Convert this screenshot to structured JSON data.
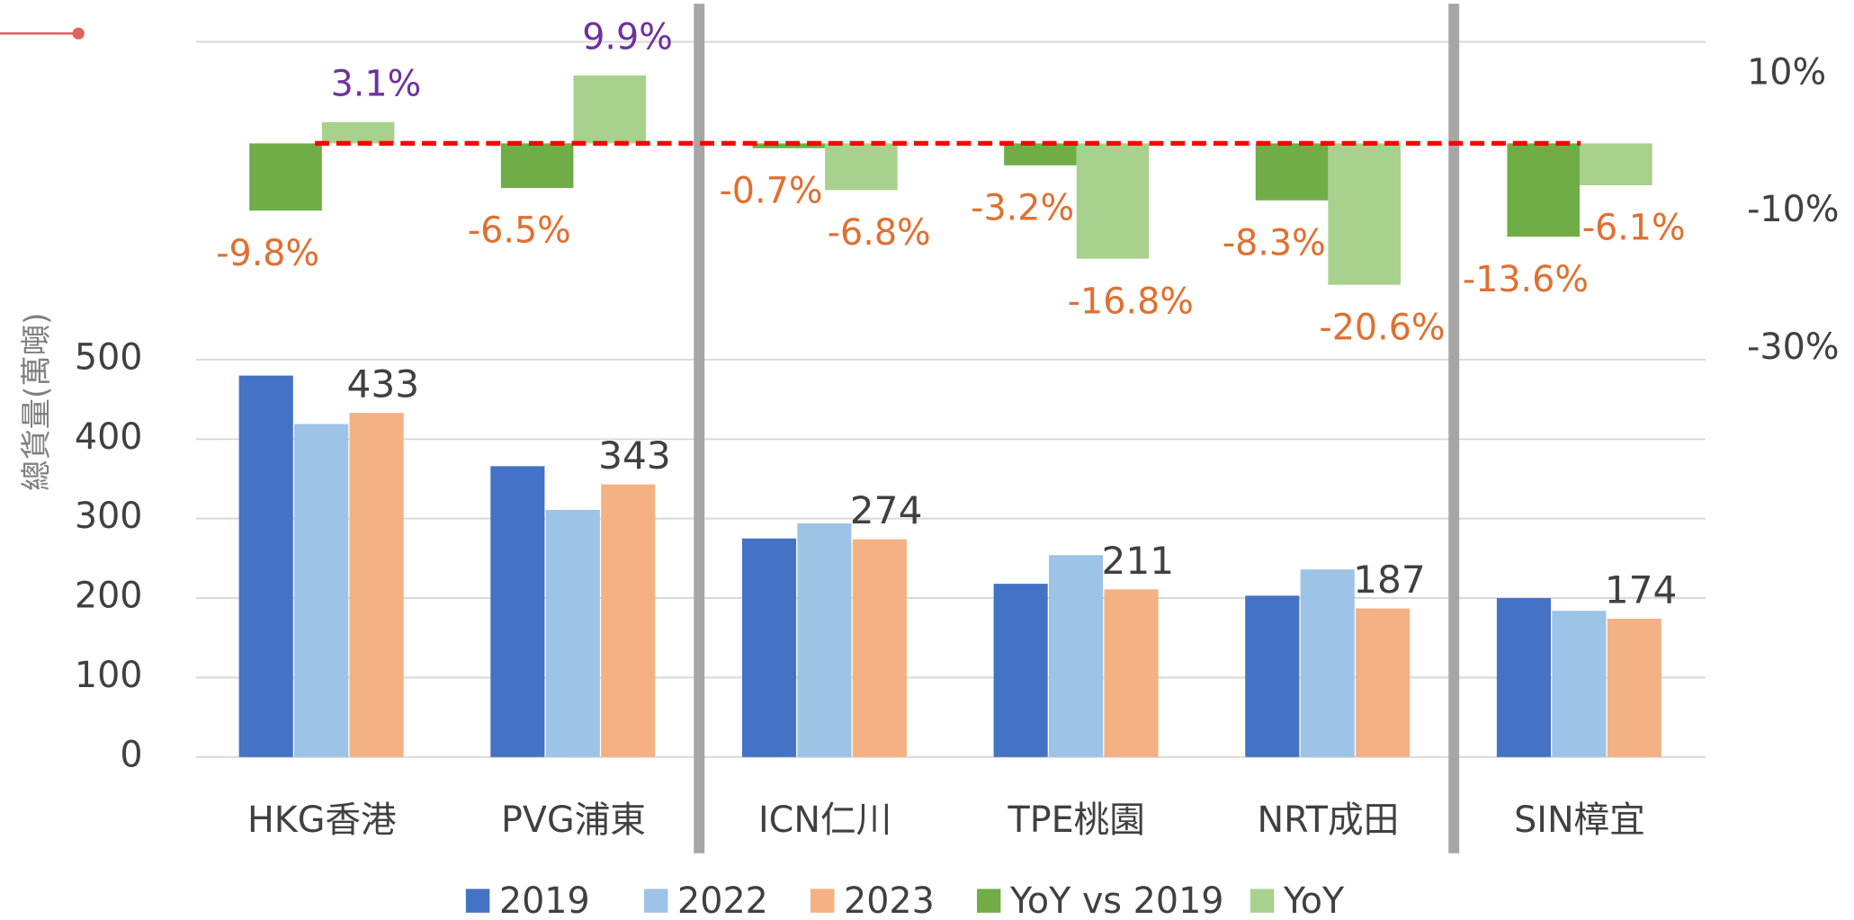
{
  "chart_data": {
    "type": "bar",
    "y_label": "總貨量(萬噸)",
    "categories": [
      "HKG香港",
      "PVG浦東",
      "ICN仁川",
      "TPE桃園",
      "NRT成田",
      "SIN樟宜"
    ],
    "series": [
      {
        "name": "2019",
        "color": "#4472c4",
        "values": [
          480,
          366,
          275,
          218,
          203,
          200
        ]
      },
      {
        "name": "2022",
        "color": "#9dc3e6",
        "values": [
          419,
          311,
          294,
          254,
          236,
          184
        ]
      },
      {
        "name": "2023",
        "color": "#f4b183",
        "values": [
          433,
          343,
          274,
          211,
          187,
          174
        ]
      },
      {
        "name": "YoY vs 2019",
        "color": "#70ad47",
        "axis": "y2",
        "values": [
          -9.8,
          -6.5,
          -0.7,
          -3.2,
          -8.3,
          -13.6
        ],
        "value_labels": [
          "-9.8%",
          "-6.5%",
          "-0.7%",
          "-3.2%",
          "-8.3%",
          "-13.6%"
        ]
      },
      {
        "name": "YoY",
        "color": "#a9d18e",
        "axis": "y2",
        "values": [
          3.1,
          9.9,
          -6.8,
          -16.8,
          -20.6,
          -6.1
        ],
        "value_labels": [
          "3.1%",
          "9.9%",
          "-6.8%",
          "-16.8%",
          "-20.6%",
          "-6.1%"
        ]
      }
    ],
    "ylim": [
      0,
      900
    ],
    "yticks": [
      0,
      100,
      200,
      300,
      400,
      500
    ],
    "y2lim": [
      -89.4,
      14.8
    ],
    "y2ticks": [
      {
        "value": 10,
        "label": "10%"
      },
      {
        "value": -10,
        "label": "-10%"
      },
      {
        "value": -30,
        "label": "-30%"
      }
    ],
    "grid": true,
    "legend": "bottom"
  }
}
